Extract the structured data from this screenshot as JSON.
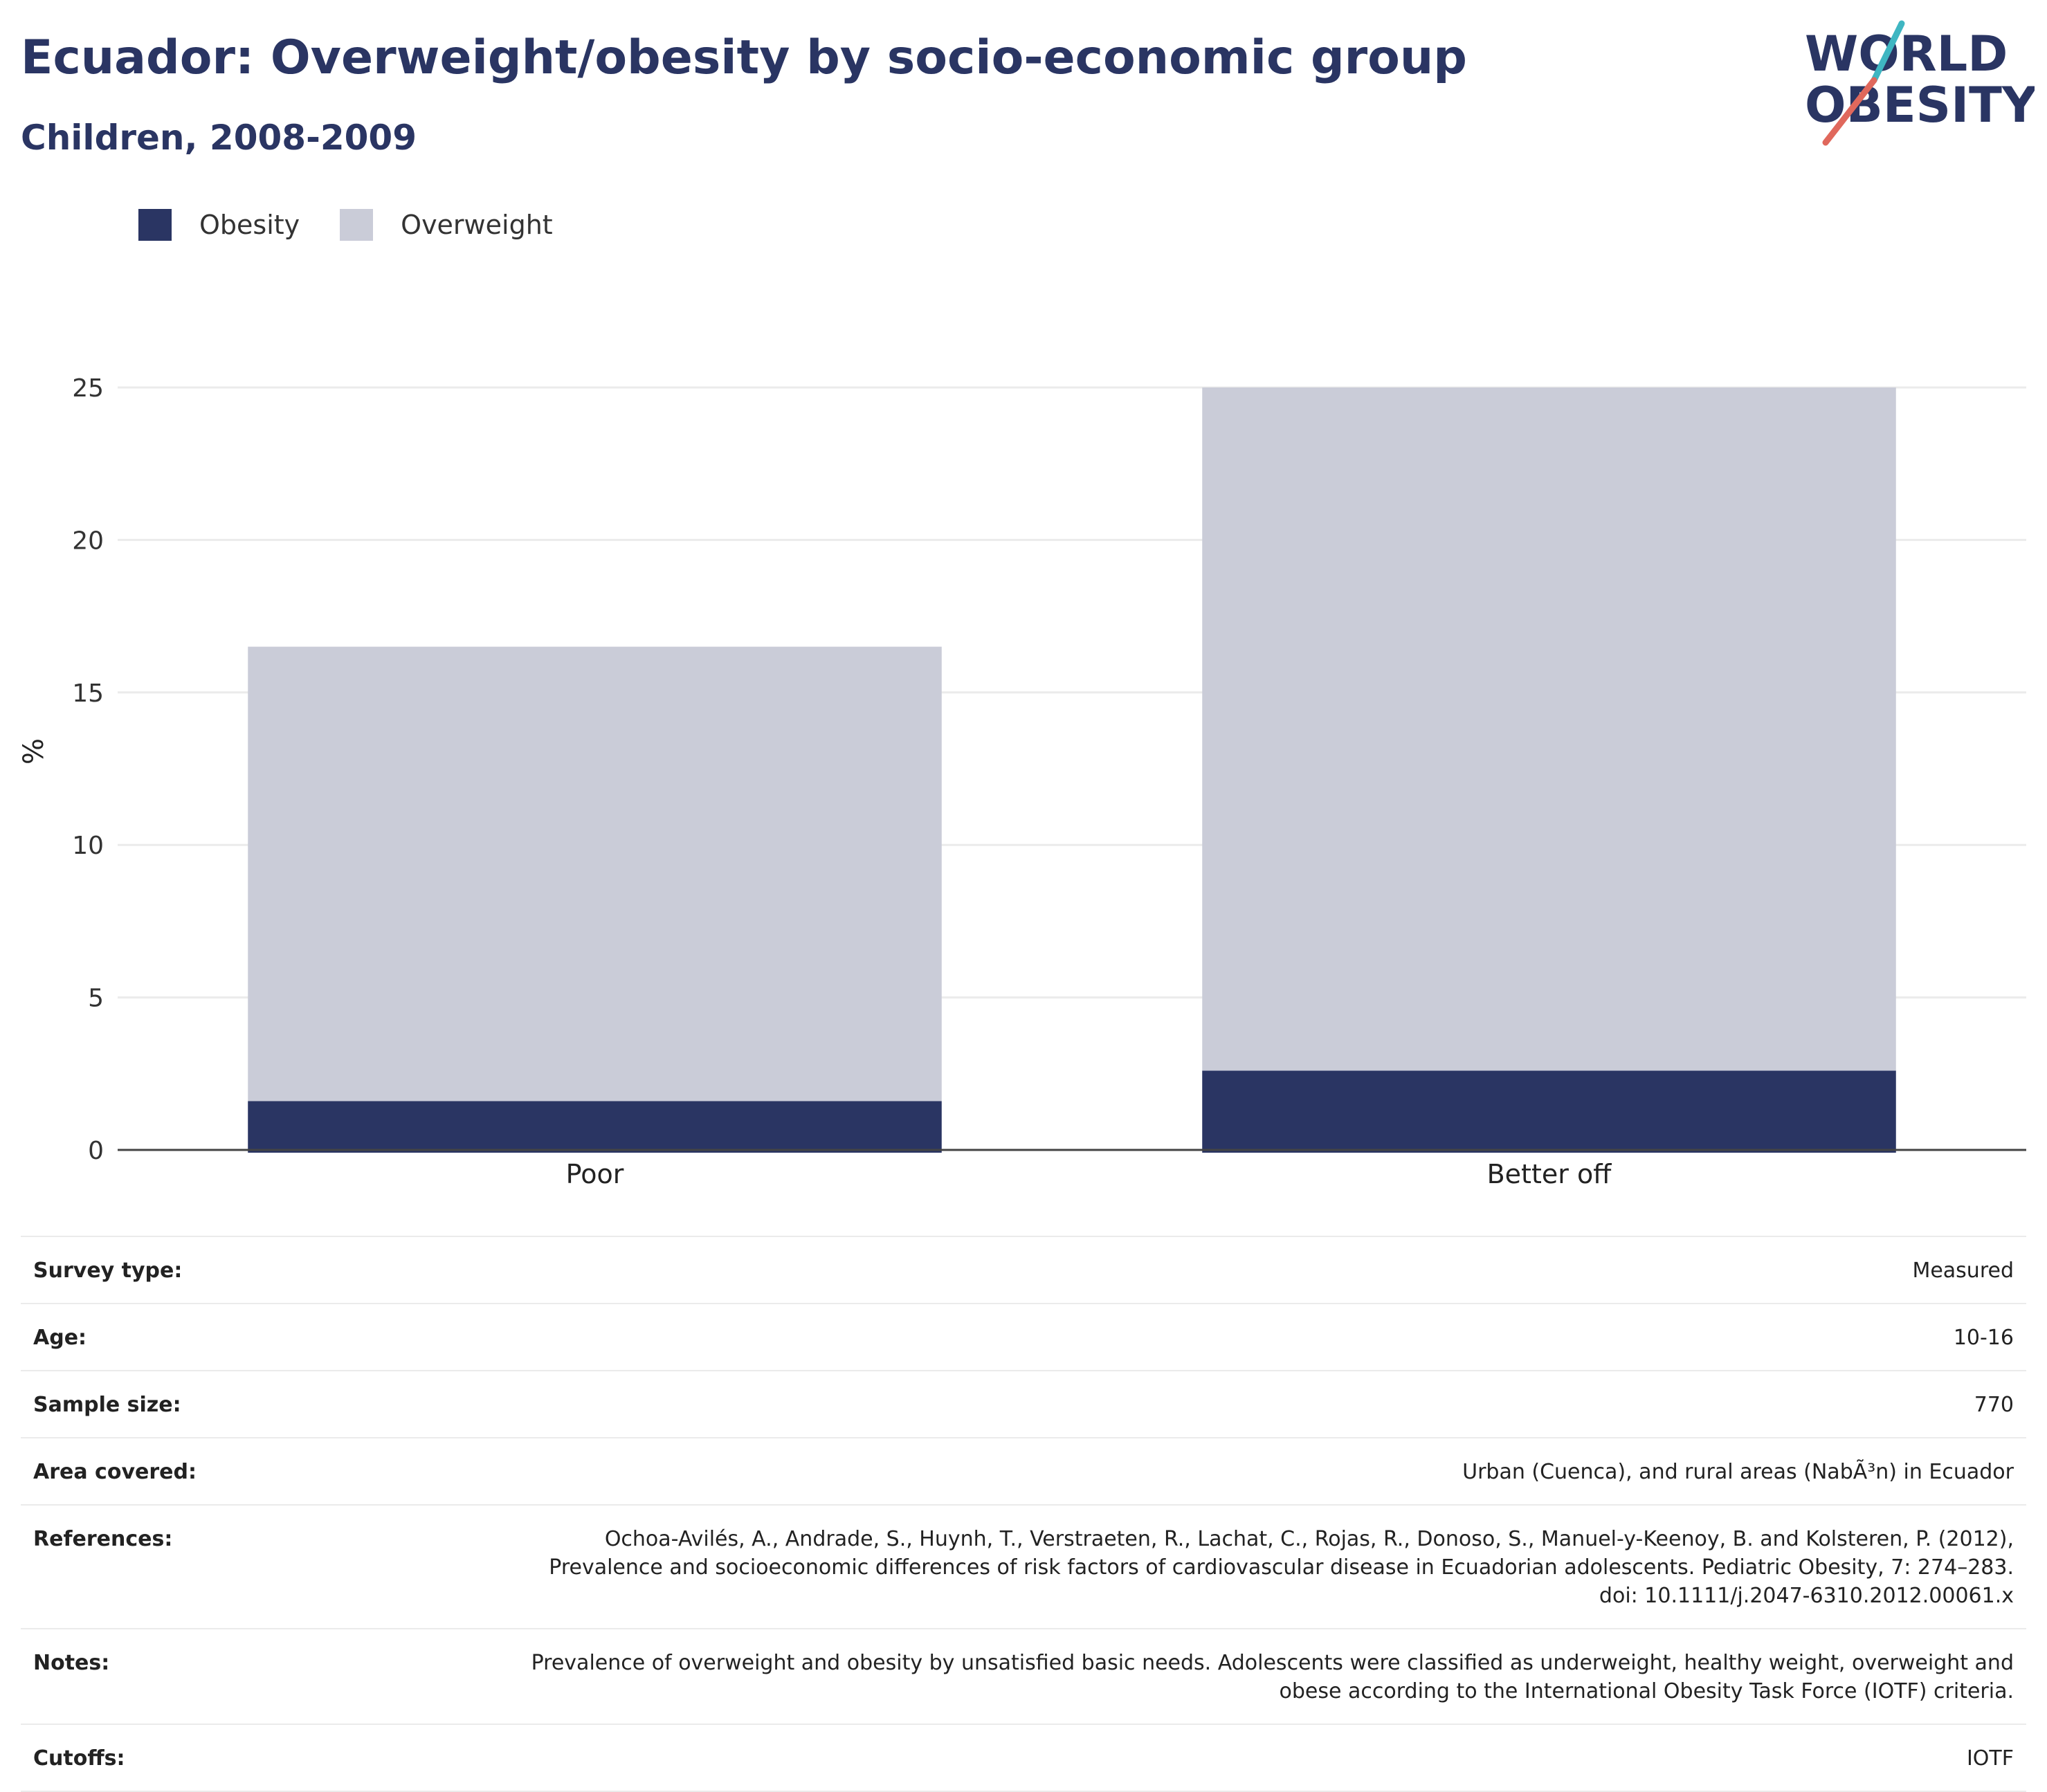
{
  "header": {
    "title": "Ecuador: Overweight/obesity by socio-economic group",
    "subtitle": "Children, 2008-2009"
  },
  "logo": {
    "line1": "WORLD",
    "line2": "OBESITY",
    "accent_colors": [
      "#3fb6c2",
      "#e0685c"
    ]
  },
  "chart_data": {
    "type": "bar",
    "stacked": true,
    "categories": [
      "Poor",
      "Better off"
    ],
    "series": [
      {
        "name": "Obesity",
        "values": [
          1.6,
          2.6
        ],
        "color": "#2a3563"
      },
      {
        "name": "Overweight",
        "values": [
          14.9,
          22.4
        ],
        "color": "#caccd8"
      }
    ],
    "ylabel": "%",
    "ylim": [
      0,
      25
    ],
    "yticks": [
      0,
      5,
      10,
      15,
      20,
      25
    ],
    "grid": true,
    "legend_position": "top-left"
  },
  "info": {
    "rows": [
      {
        "label": "Survey type:",
        "value": "Measured"
      },
      {
        "label": "Age:",
        "value": "10-16"
      },
      {
        "label": "Sample size:",
        "value": "770"
      },
      {
        "label": "Area covered:",
        "value": "Urban (Cuenca), and rural areas (NabÃ³n) in Ecuador"
      },
      {
        "label": "References:",
        "value": "Ochoa-Avilés, A., Andrade, S., Huynh, T., Verstraeten, R., Lachat, C., Rojas, R., Donoso, S., Manuel-y-Keenoy, B. and Kolsteren, P. (2012), Prevalence and socioeconomic differences of risk factors of cardiovascular disease in Ecuadorian adolescents. Pediatric Obesity, 7: 274–283. doi: 10.1111/j.2047-6310.2012.00061.x"
      },
      {
        "label": "Notes:",
        "value": "Prevalence of overweight and obesity by unsatisfied basic needs. Adolescents were classified as underweight, healthy weight, overweight and obese according to the International Obesity Task Force (IOTF) criteria."
      },
      {
        "label": "Cutoffs:",
        "value": "IOTF"
      }
    ]
  }
}
